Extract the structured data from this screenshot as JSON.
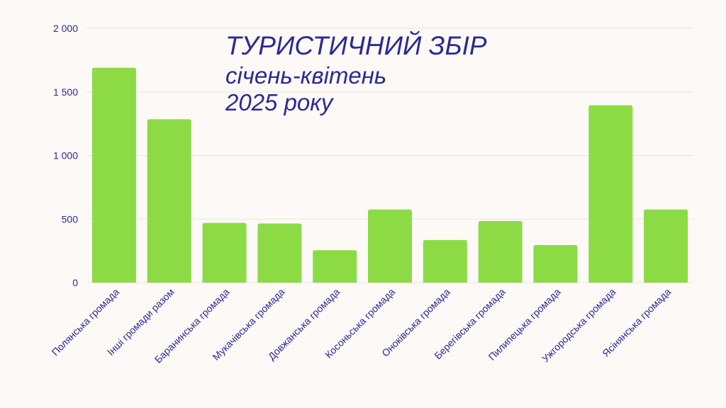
{
  "chart_data": {
    "type": "bar",
    "title": "ТУРИСТИЧНИЙ ЗБІР",
    "subtitle_line1": "січень-квітень",
    "subtitle_line2": "2025 року",
    "categories": [
      "Полянська громада",
      "Інші громади разом",
      "Баранинська громада",
      "Мукачівська громада",
      "Довжанська громада",
      "Косоньська громада",
      "Оноківська громада",
      "Берегівська громада",
      "Пилипецька громада",
      "Ужгородська громада",
      "Ясінянська громада"
    ],
    "values": [
      1690,
      1285,
      470,
      465,
      255,
      575,
      335,
      485,
      295,
      1395,
      575
    ],
    "ylim": [
      0,
      2000
    ],
    "yticks": [
      0,
      500,
      1000,
      1500,
      2000
    ],
    "ytick_labels": [
      "0",
      "500",
      "1 000",
      "1 500",
      "2 000"
    ],
    "xlabel": "",
    "ylabel": "",
    "grid": true,
    "legend": "none",
    "colors": {
      "bar": "#8cdb45",
      "text": "#2b2a93",
      "grid": "#e7e4e4",
      "background": "#fcf9f7"
    }
  }
}
